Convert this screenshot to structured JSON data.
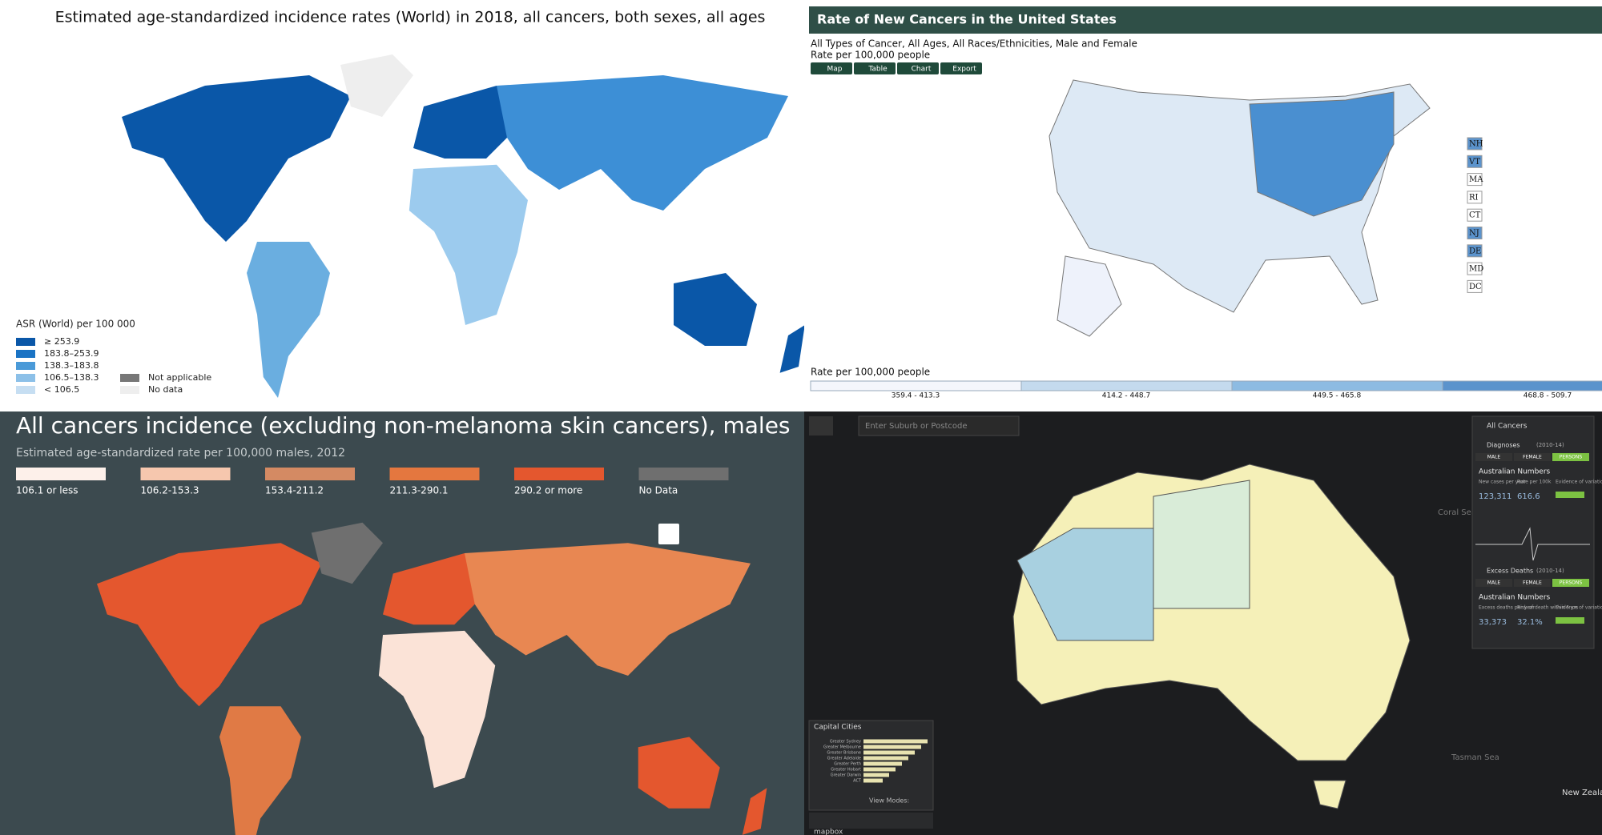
{
  "panels": [
    {
      "title": "Estimated age-standardized incidence rates (World) in 2018, all cancers, both sexes, all ages",
      "legend_title": "ASR (World) per 100 000",
      "legend": [
        "≥ 253.9",
        "183.8–253.9",
        "138.3–183.8",
        "106.5–138.3",
        "< 106.5"
      ],
      "legend_extra": [
        "Not applicable",
        "No data"
      ]
    },
    {
      "title": "Rate of New Cancers in the United States",
      "subtitle": "All Types of Cancer, All Ages, All Races/Ethnicities, Male and Female",
      "unit": "Rate per 100,000 people",
      "buttons": [
        "Map",
        "Table",
        "Chart",
        "Export"
      ],
      "states": [
        "NH",
        "VT",
        "MA",
        "RI",
        "CT",
        "NJ",
        "DE",
        "MD",
        "DC"
      ],
      "legend_title": "Rate per 100,000 people",
      "legend": [
        "359.4 - 413.3",
        "414.2 - 448.7",
        "449.5 - 465.8",
        "468.8 - 509.7"
      ]
    },
    {
      "title": "All cancers incidence (excluding non-melanoma skin cancers), males",
      "subtitle": "Estimated age-standardized rate per 100,000 males, 2012",
      "legend": [
        "106.1 or less",
        "106.2-153.3",
        "153.4-211.2",
        "211.3-290.1",
        "290.2 or more",
        "No Data"
      ]
    },
    {
      "search": "Enter Suburb or Postcode",
      "layer": "All Cancers",
      "diagnoses": {
        "title": "Diagnoses",
        "period": "(2010-14)",
        "tabs": [
          "MALE",
          "FEMALE",
          "PERSONS"
        ],
        "heading": "Australian Numbers",
        "labels": [
          "New cases per year",
          "Rate per 100k",
          "Evidence of variation"
        ],
        "values": [
          "123,311",
          "616.6"
        ]
      },
      "deaths": {
        "title": "Excess Deaths",
        "period": "(2010-14)",
        "tabs": [
          "MALE",
          "FEMALE",
          "PERSONS"
        ],
        "heading": "Australian Numbers",
        "labels": [
          "Excess deaths per year",
          "Risk of death within 5 yrs",
          "Evidence of variation"
        ],
        "values": [
          "33,373",
          "32.1%"
        ]
      },
      "cities_title": "Capital Cities",
      "cities": [
        "Greater Sydney",
        "Greater Melbourne",
        "Greater Brisbane",
        "Greater Adelaide",
        "Greater Perth",
        "Greater Hobart",
        "Greater Darwin",
        "ACT"
      ],
      "view_modes": "View Modes:",
      "places": [
        "Coral Sea",
        "Tasman Sea",
        "New Zealand"
      ],
      "attribution": "mapbox"
    }
  ]
}
